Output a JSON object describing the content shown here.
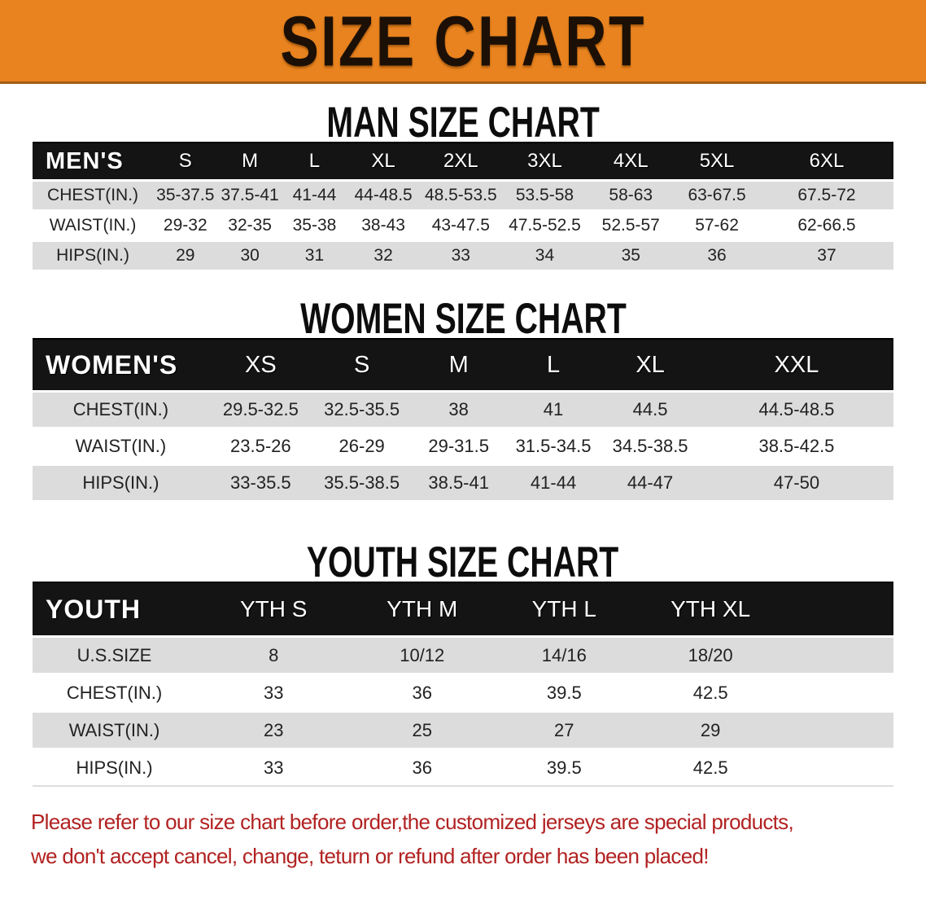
{
  "banner": {
    "title": "SIZE CHART",
    "bg_color": "#e8831f",
    "text_color": "#1c1006"
  },
  "sections": [
    {
      "heading": "MAN SIZE CHART",
      "header_label": "MEN'S",
      "columns": [
        "S",
        "M",
        "L",
        "XL",
        "2XL",
        "3XL",
        "4XL",
        "5XL",
        "6XL"
      ],
      "rows": [
        {
          "label": "CHEST(IN.)",
          "values": [
            "35-37.5",
            "37.5-41",
            "41-44",
            "44-48.5",
            "48.5-53.5",
            "53.5-58",
            "58-63",
            "63-67.5",
            "67.5-72"
          ]
        },
        {
          "label": "WAIST(IN.)",
          "values": [
            "29-32",
            "32-35",
            "35-38",
            "38-43",
            "43-47.5",
            "47.5-52.5",
            "52.5-57",
            "57-62",
            "62-66.5"
          ]
        },
        {
          "label": "HIPS(IN.)",
          "values": [
            "29",
            "30",
            "31",
            "32",
            "33",
            "34",
            "35",
            "36",
            "37"
          ]
        }
      ]
    },
    {
      "heading": "WOMEN SIZE CHART",
      "header_label": "WOMEN'S",
      "columns": [
        "XS",
        "S",
        "M",
        "L",
        "XL",
        "XXL"
      ],
      "rows": [
        {
          "label": "CHEST(IN.)",
          "values": [
            "29.5-32.5",
            "32.5-35.5",
            "38",
            "41",
            "44.5",
            "44.5-48.5"
          ]
        },
        {
          "label": "WAIST(IN.)",
          "values": [
            "23.5-26",
            "26-29",
            "29-31.5",
            "31.5-34.5",
            "34.5-38.5",
            "38.5-42.5"
          ]
        },
        {
          "label": "HIPS(IN.)",
          "values": [
            "33-35.5",
            "35.5-38.5",
            "38.5-41",
            "41-44",
            "44-47",
            "47-50"
          ]
        }
      ]
    },
    {
      "heading": "YOUTH SIZE CHART",
      "header_label": "YOUTH",
      "columns": [
        "YTH S",
        "YTH M",
        "YTH L",
        "YTH XL"
      ],
      "rows": [
        {
          "label": "U.S.SIZE",
          "values": [
            "8",
            "10/12",
            "14/16",
            "18/20"
          ]
        },
        {
          "label": "CHEST(IN.)",
          "values": [
            "33",
            "36",
            "39.5",
            "42.5"
          ]
        },
        {
          "label": "WAIST(IN.)",
          "values": [
            "23",
            "25",
            "27",
            "29"
          ]
        },
        {
          "label": "HIPS(IN.)",
          "values": [
            "33",
            "36",
            "39.5",
            "42.5"
          ]
        }
      ]
    }
  ],
  "disclaimer": {
    "line1": "Please refer to our size chart before order,the customized jerseys are special products,",
    "line2": "we don't accept cancel, change, teturn or refund after order has been placed!",
    "color": "#b22222"
  }
}
